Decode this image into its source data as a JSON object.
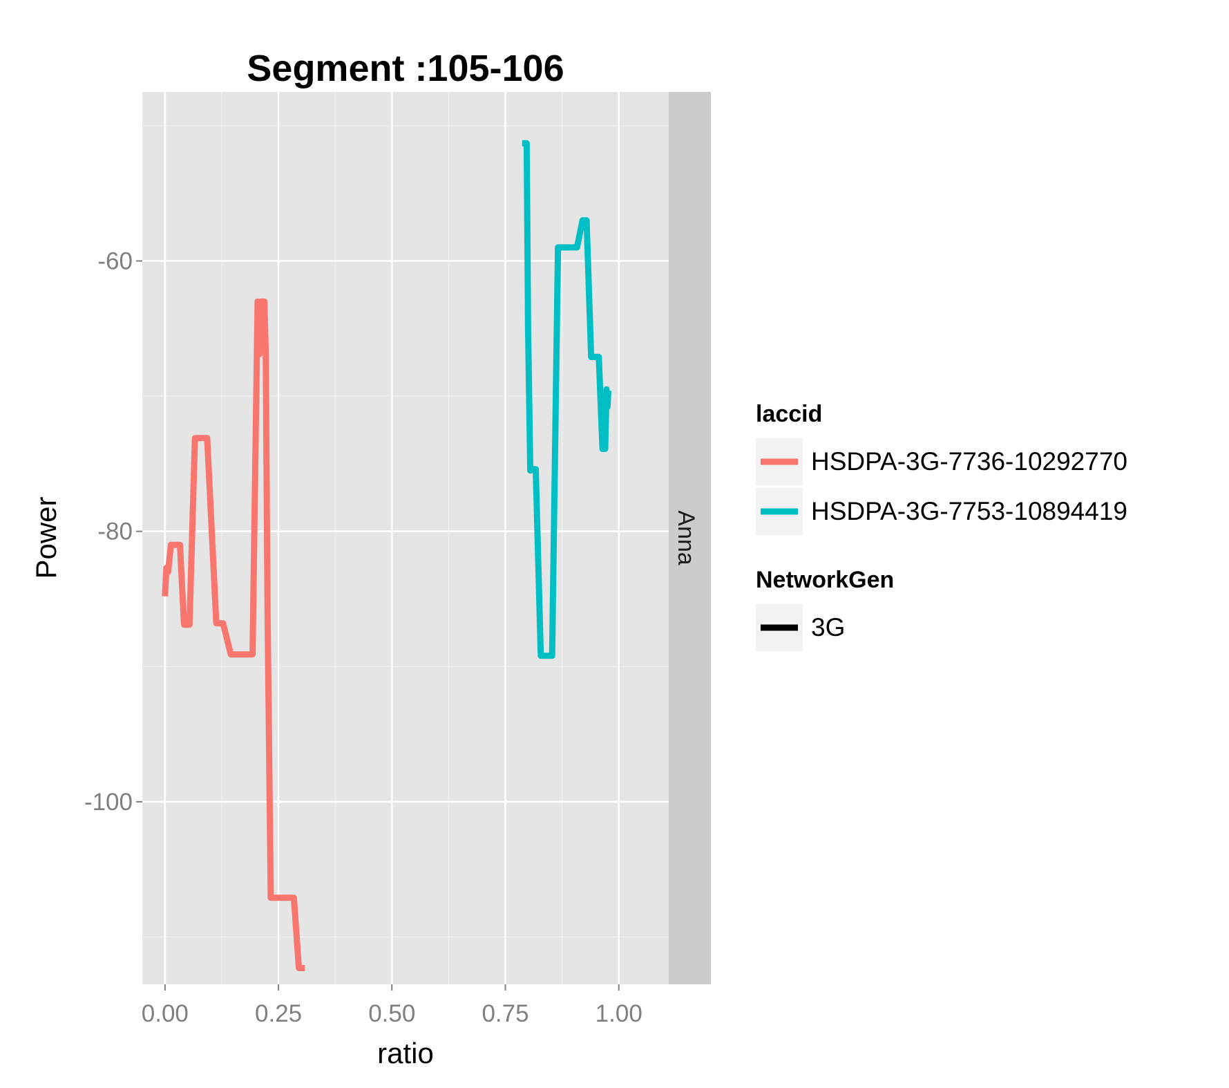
{
  "chart_data": {
    "type": "line",
    "title": "Segment :105-106",
    "xlabel": "ratio",
    "ylabel": "Power",
    "xlim": [
      -0.05,
      1.11
    ],
    "ylim": [
      -113.5,
      -47.5
    ],
    "x_ticks": [
      0,
      0.25,
      0.5,
      0.75,
      1
    ],
    "x_tick_labels": [
      "0.00",
      "0.25",
      "0.50",
      "0.75",
      "1.00"
    ],
    "y_ticks": [
      -60,
      -80,
      -100
    ],
    "y_tick_labels": [
      "-60",
      "-80",
      "-100"
    ],
    "grid": true,
    "facet_label": "Anna",
    "series": [
      {
        "name": "HSDPA-3G-7736-10292770",
        "color": "#F8766D",
        "points": [
          [
            0.0,
            -84.8
          ],
          [
            0.003,
            -82.7
          ],
          [
            0.007,
            -83.0
          ],
          [
            0.013,
            -81.0
          ],
          [
            0.033,
            -81.0
          ],
          [
            0.042,
            -86.9
          ],
          [
            0.054,
            -86.9
          ],
          [
            0.066,
            -73.1
          ],
          [
            0.093,
            -73.1
          ],
          [
            0.113,
            -86.8
          ],
          [
            0.128,
            -86.8
          ],
          [
            0.145,
            -89.1
          ],
          [
            0.193,
            -89.1
          ],
          [
            0.204,
            -63.0
          ],
          [
            0.208,
            -66.9
          ],
          [
            0.212,
            -63.0
          ],
          [
            0.219,
            -63.0
          ],
          [
            0.222,
            -66.9
          ],
          [
            0.226,
            -86.0
          ],
          [
            0.233,
            -107.1
          ],
          [
            0.284,
            -107.1
          ],
          [
            0.295,
            -112.3
          ],
          [
            0.308,
            -112.3
          ]
        ]
      },
      {
        "name": "HSDPA-3G-7753-10894419",
        "color": "#00BFC4",
        "points": [
          [
            0.787,
            -51.3
          ],
          [
            0.797,
            -51.3
          ],
          [
            0.8,
            -65.0
          ],
          [
            0.805,
            -75.5
          ],
          [
            0.809,
            -75.4
          ],
          [
            0.817,
            -75.4
          ],
          [
            0.828,
            -89.2
          ],
          [
            0.853,
            -89.2
          ],
          [
            0.866,
            -59.0
          ],
          [
            0.908,
            -59.0
          ],
          [
            0.92,
            -57.0
          ],
          [
            0.929,
            -57.0
          ],
          [
            0.939,
            -67.1
          ],
          [
            0.956,
            -67.1
          ],
          [
            0.964,
            -73.9
          ],
          [
            0.97,
            -73.9
          ],
          [
            0.973,
            -69.5
          ],
          [
            0.975,
            -70.8
          ],
          [
            0.977,
            -69.6
          ]
        ]
      }
    ],
    "legends": [
      {
        "title": "laccid",
        "entries": [
          {
            "label": "HSDPA-3G-7736-10292770",
            "color": "#F8766D"
          },
          {
            "label": "HSDPA-3G-7753-10894419",
            "color": "#00BFC4"
          }
        ]
      },
      {
        "title": "NetworkGen",
        "entries": [
          {
            "label": "3G",
            "color": "#000000"
          }
        ]
      }
    ],
    "legend_position": "right"
  }
}
